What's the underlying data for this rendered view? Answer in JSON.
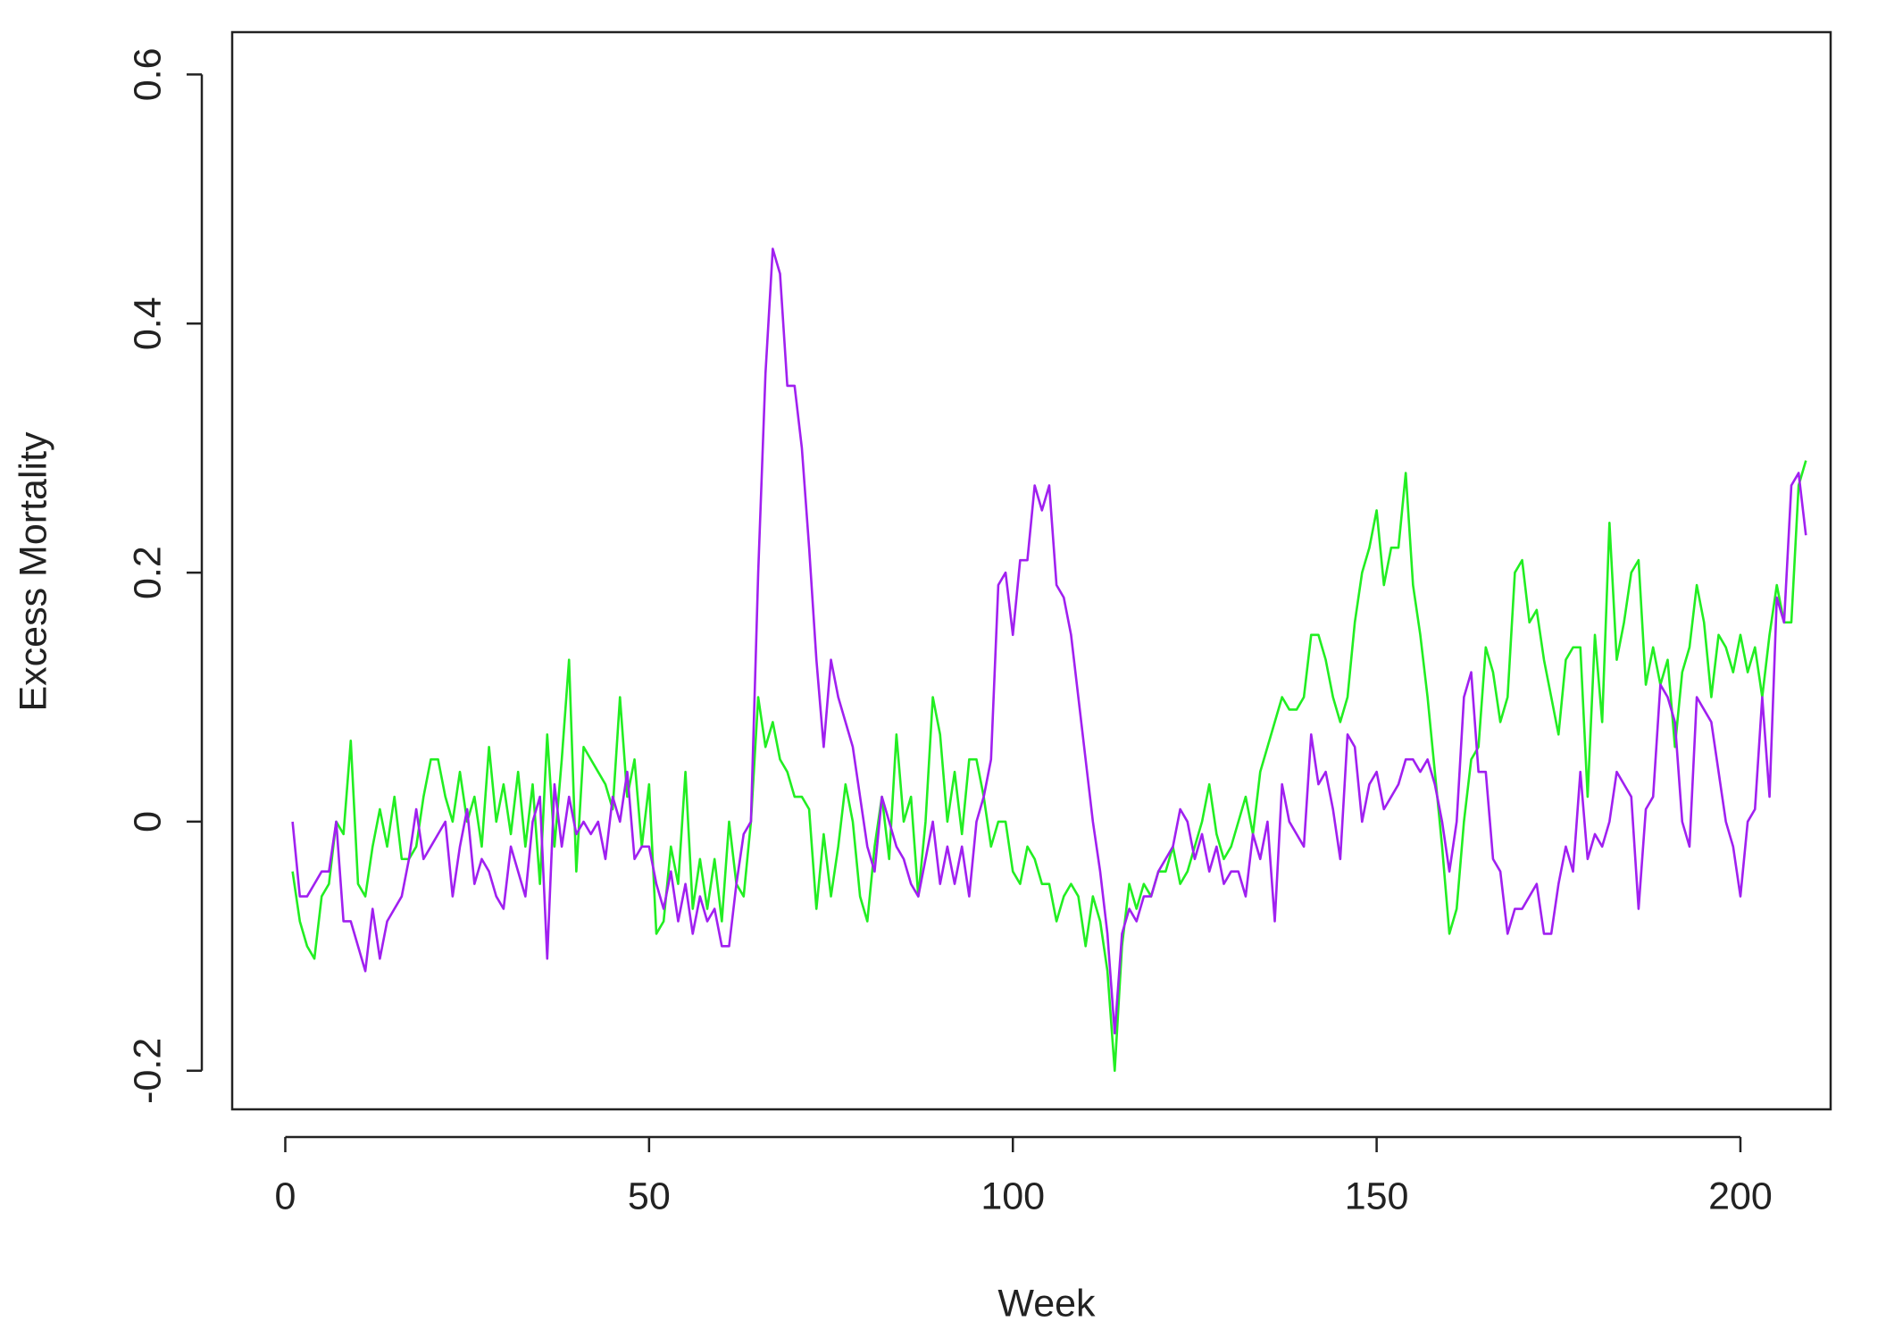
{
  "chart_data": {
    "type": "line",
    "xlabel": "Week",
    "ylabel": "Excess Mortality",
    "x": [
      1,
      2,
      3,
      4,
      5,
      6,
      7,
      8,
      9,
      10,
      11,
      12,
      13,
      14,
      15,
      16,
      17,
      18,
      19,
      20,
      21,
      22,
      23,
      24,
      25,
      26,
      27,
      28,
      29,
      30,
      31,
      32,
      33,
      34,
      35,
      36,
      37,
      38,
      39,
      40,
      41,
      42,
      43,
      44,
      45,
      46,
      47,
      48,
      49,
      50,
      51,
      52,
      53,
      54,
      55,
      56,
      57,
      58,
      59,
      60,
      61,
      62,
      63,
      64,
      65,
      66,
      67,
      68,
      69,
      70,
      71,
      72,
      73,
      74,
      75,
      76,
      77,
      78,
      79,
      80,
      81,
      82,
      83,
      84,
      85,
      86,
      87,
      88,
      89,
      90,
      91,
      92,
      93,
      94,
      95,
      96,
      97,
      98,
      99,
      100,
      101,
      102,
      103,
      104,
      105,
      106,
      107,
      108,
      109,
      110,
      111,
      112,
      113,
      114,
      115,
      116,
      117,
      118,
      119,
      120,
      121,
      122,
      123,
      124,
      125,
      126,
      127,
      128,
      129,
      130,
      131,
      132,
      133,
      134,
      135,
      136,
      137,
      138,
      139,
      140,
      141,
      142,
      143,
      144,
      145,
      146,
      147,
      148,
      149,
      150,
      151,
      152,
      153,
      154,
      155,
      156,
      157,
      158,
      159,
      160,
      161,
      162,
      163,
      164,
      165,
      166,
      167,
      168,
      169,
      170,
      171,
      172,
      173,
      174,
      175,
      176,
      177,
      178,
      179,
      180,
      181,
      182,
      183,
      184,
      185,
      186,
      187,
      188,
      189,
      190,
      191,
      192,
      193,
      194,
      195,
      196,
      197,
      198,
      199,
      200,
      201,
      202,
      203,
      204,
      205,
      206,
      207,
      208,
      209
    ],
    "series": [
      {
        "color": "#22ee22",
        "values": [
          -0.04,
          -0.08,
          -0.1,
          -0.11,
          -0.06,
          -0.05,
          0.0,
          -0.01,
          0.065,
          -0.05,
          -0.06,
          -0.02,
          0.01,
          -0.02,
          0.02,
          -0.03,
          -0.03,
          -0.02,
          0.02,
          0.05,
          0.05,
          0.02,
          0.0,
          0.04,
          0.0,
          0.02,
          -0.02,
          0.06,
          0.0,
          0.03,
          -0.01,
          0.04,
          -0.02,
          0.03,
          -0.05,
          0.07,
          -0.02,
          0.05,
          0.13,
          -0.04,
          0.06,
          0.05,
          0.04,
          0.03,
          0.01,
          0.1,
          0.02,
          0.05,
          -0.02,
          0.03,
          -0.09,
          -0.08,
          -0.02,
          -0.05,
          0.04,
          -0.07,
          -0.03,
          -0.07,
          -0.03,
          -0.08,
          0.0,
          -0.05,
          -0.06,
          0.0,
          0.1,
          0.06,
          0.08,
          0.05,
          0.04,
          0.02,
          0.02,
          0.01,
          -0.07,
          -0.01,
          -0.06,
          -0.02,
          0.03,
          0.0,
          -0.06,
          -0.08,
          -0.02,
          0.02,
          -0.03,
          0.07,
          0.0,
          0.02,
          -0.06,
          0.0,
          0.1,
          0.07,
          0.0,
          0.04,
          -0.01,
          0.05,
          0.05,
          0.02,
          -0.02,
          0.0,
          0.0,
          -0.04,
          -0.05,
          -0.02,
          -0.03,
          -0.05,
          -0.05,
          -0.08,
          -0.06,
          -0.05,
          -0.06,
          -0.1,
          -0.06,
          -0.08,
          -0.12,
          -0.2,
          -0.1,
          -0.05,
          -0.07,
          -0.05,
          -0.06,
          -0.04,
          -0.04,
          -0.02,
          -0.05,
          -0.04,
          -0.02,
          0.0,
          0.03,
          -0.01,
          -0.03,
          -0.02,
          0.0,
          0.02,
          -0.01,
          0.04,
          0.06,
          0.08,
          0.1,
          0.09,
          0.09,
          0.1,
          0.15,
          0.15,
          0.13,
          0.1,
          0.08,
          0.1,
          0.16,
          0.2,
          0.22,
          0.25,
          0.19,
          0.22,
          0.22,
          0.28,
          0.19,
          0.15,
          0.1,
          0.04,
          -0.02,
          -0.09,
          -0.07,
          0.0,
          0.05,
          0.06,
          0.14,
          0.12,
          0.08,
          0.1,
          0.2,
          0.21,
          0.16,
          0.17,
          0.13,
          0.1,
          0.07,
          0.13,
          0.14,
          0.14,
          0.02,
          0.15,
          0.08,
          0.24,
          0.13,
          0.16,
          0.2,
          0.21,
          0.11,
          0.14,
          0.11,
          0.13,
          0.06,
          0.12,
          0.14,
          0.19,
          0.16,
          0.1,
          0.15,
          0.14,
          0.12,
          0.15,
          0.12,
          0.14,
          0.1,
          0.15,
          0.19,
          0.16,
          0.16,
          0.27,
          0.29
        ]
      },
      {
        "color": "#a020f0",
        "values": [
          0.0,
          -0.06,
          -0.06,
          -0.05,
          -0.04,
          -0.04,
          0.0,
          -0.08,
          -0.08,
          -0.1,
          -0.12,
          -0.07,
          -0.11,
          -0.08,
          -0.07,
          -0.06,
          -0.03,
          0.01,
          -0.03,
          -0.02,
          -0.01,
          0.0,
          -0.06,
          -0.02,
          0.01,
          -0.05,
          -0.03,
          -0.04,
          -0.06,
          -0.07,
          -0.02,
          -0.04,
          -0.06,
          0.0,
          0.02,
          -0.11,
          0.03,
          -0.02,
          0.02,
          -0.01,
          0.0,
          -0.01,
          0.0,
          -0.03,
          0.02,
          0.0,
          0.04,
          -0.03,
          -0.02,
          -0.02,
          -0.05,
          -0.07,
          -0.04,
          -0.08,
          -0.05,
          -0.09,
          -0.06,
          -0.08,
          -0.07,
          -0.1,
          -0.1,
          -0.05,
          -0.01,
          0.0,
          0.2,
          0.36,
          0.46,
          0.44,
          0.35,
          0.35,
          0.3,
          0.22,
          0.13,
          0.06,
          0.13,
          0.1,
          0.08,
          0.06,
          0.02,
          -0.02,
          -0.04,
          0.02,
          0.0,
          -0.02,
          -0.03,
          -0.05,
          -0.06,
          -0.03,
          0.0,
          -0.05,
          -0.02,
          -0.05,
          -0.02,
          -0.06,
          0.0,
          0.02,
          0.05,
          0.19,
          0.2,
          0.15,
          0.21,
          0.21,
          0.27,
          0.25,
          0.27,
          0.19,
          0.18,
          0.15,
          0.1,
          0.05,
          0.0,
          -0.04,
          -0.09,
          -0.17,
          -0.09,
          -0.07,
          -0.08,
          -0.06,
          -0.06,
          -0.04,
          -0.03,
          -0.02,
          0.01,
          0.0,
          -0.03,
          -0.01,
          -0.04,
          -0.02,
          -0.05,
          -0.04,
          -0.04,
          -0.06,
          -0.01,
          -0.03,
          0.0,
          -0.08,
          0.03,
          0.0,
          -0.01,
          -0.02,
          0.07,
          0.03,
          0.04,
          0.01,
          -0.03,
          0.07,
          0.06,
          0.0,
          0.03,
          0.04,
          0.01,
          0.02,
          0.03,
          0.05,
          0.05,
          0.04,
          0.05,
          0.03,
          0.0,
          -0.04,
          0.0,
          0.1,
          0.12,
          0.04,
          0.04,
          -0.03,
          -0.04,
          -0.09,
          -0.07,
          -0.07,
          -0.06,
          -0.05,
          -0.09,
          -0.09,
          -0.05,
          -0.02,
          -0.04,
          0.04,
          -0.03,
          -0.01,
          -0.02,
          0.0,
          0.04,
          0.03,
          0.02,
          -0.07,
          0.01,
          0.02,
          0.11,
          0.1,
          0.08,
          0.0,
          -0.02,
          0.1,
          0.09,
          0.08,
          0.04,
          0.0,
          -0.02,
          -0.06,
          0.0,
          0.01,
          0.1,
          0.02,
          0.18,
          0.16,
          0.27,
          0.28,
          0.23
        ]
      }
    ],
    "xlim": [
      -7.3,
      212.4
    ],
    "xticks": [
      0,
      50,
      100,
      150,
      200
    ],
    "ylim": [
      -0.231,
      0.634
    ],
    "yticks": [
      -0.2,
      0.0,
      0.2,
      0.4,
      0.6
    ]
  }
}
